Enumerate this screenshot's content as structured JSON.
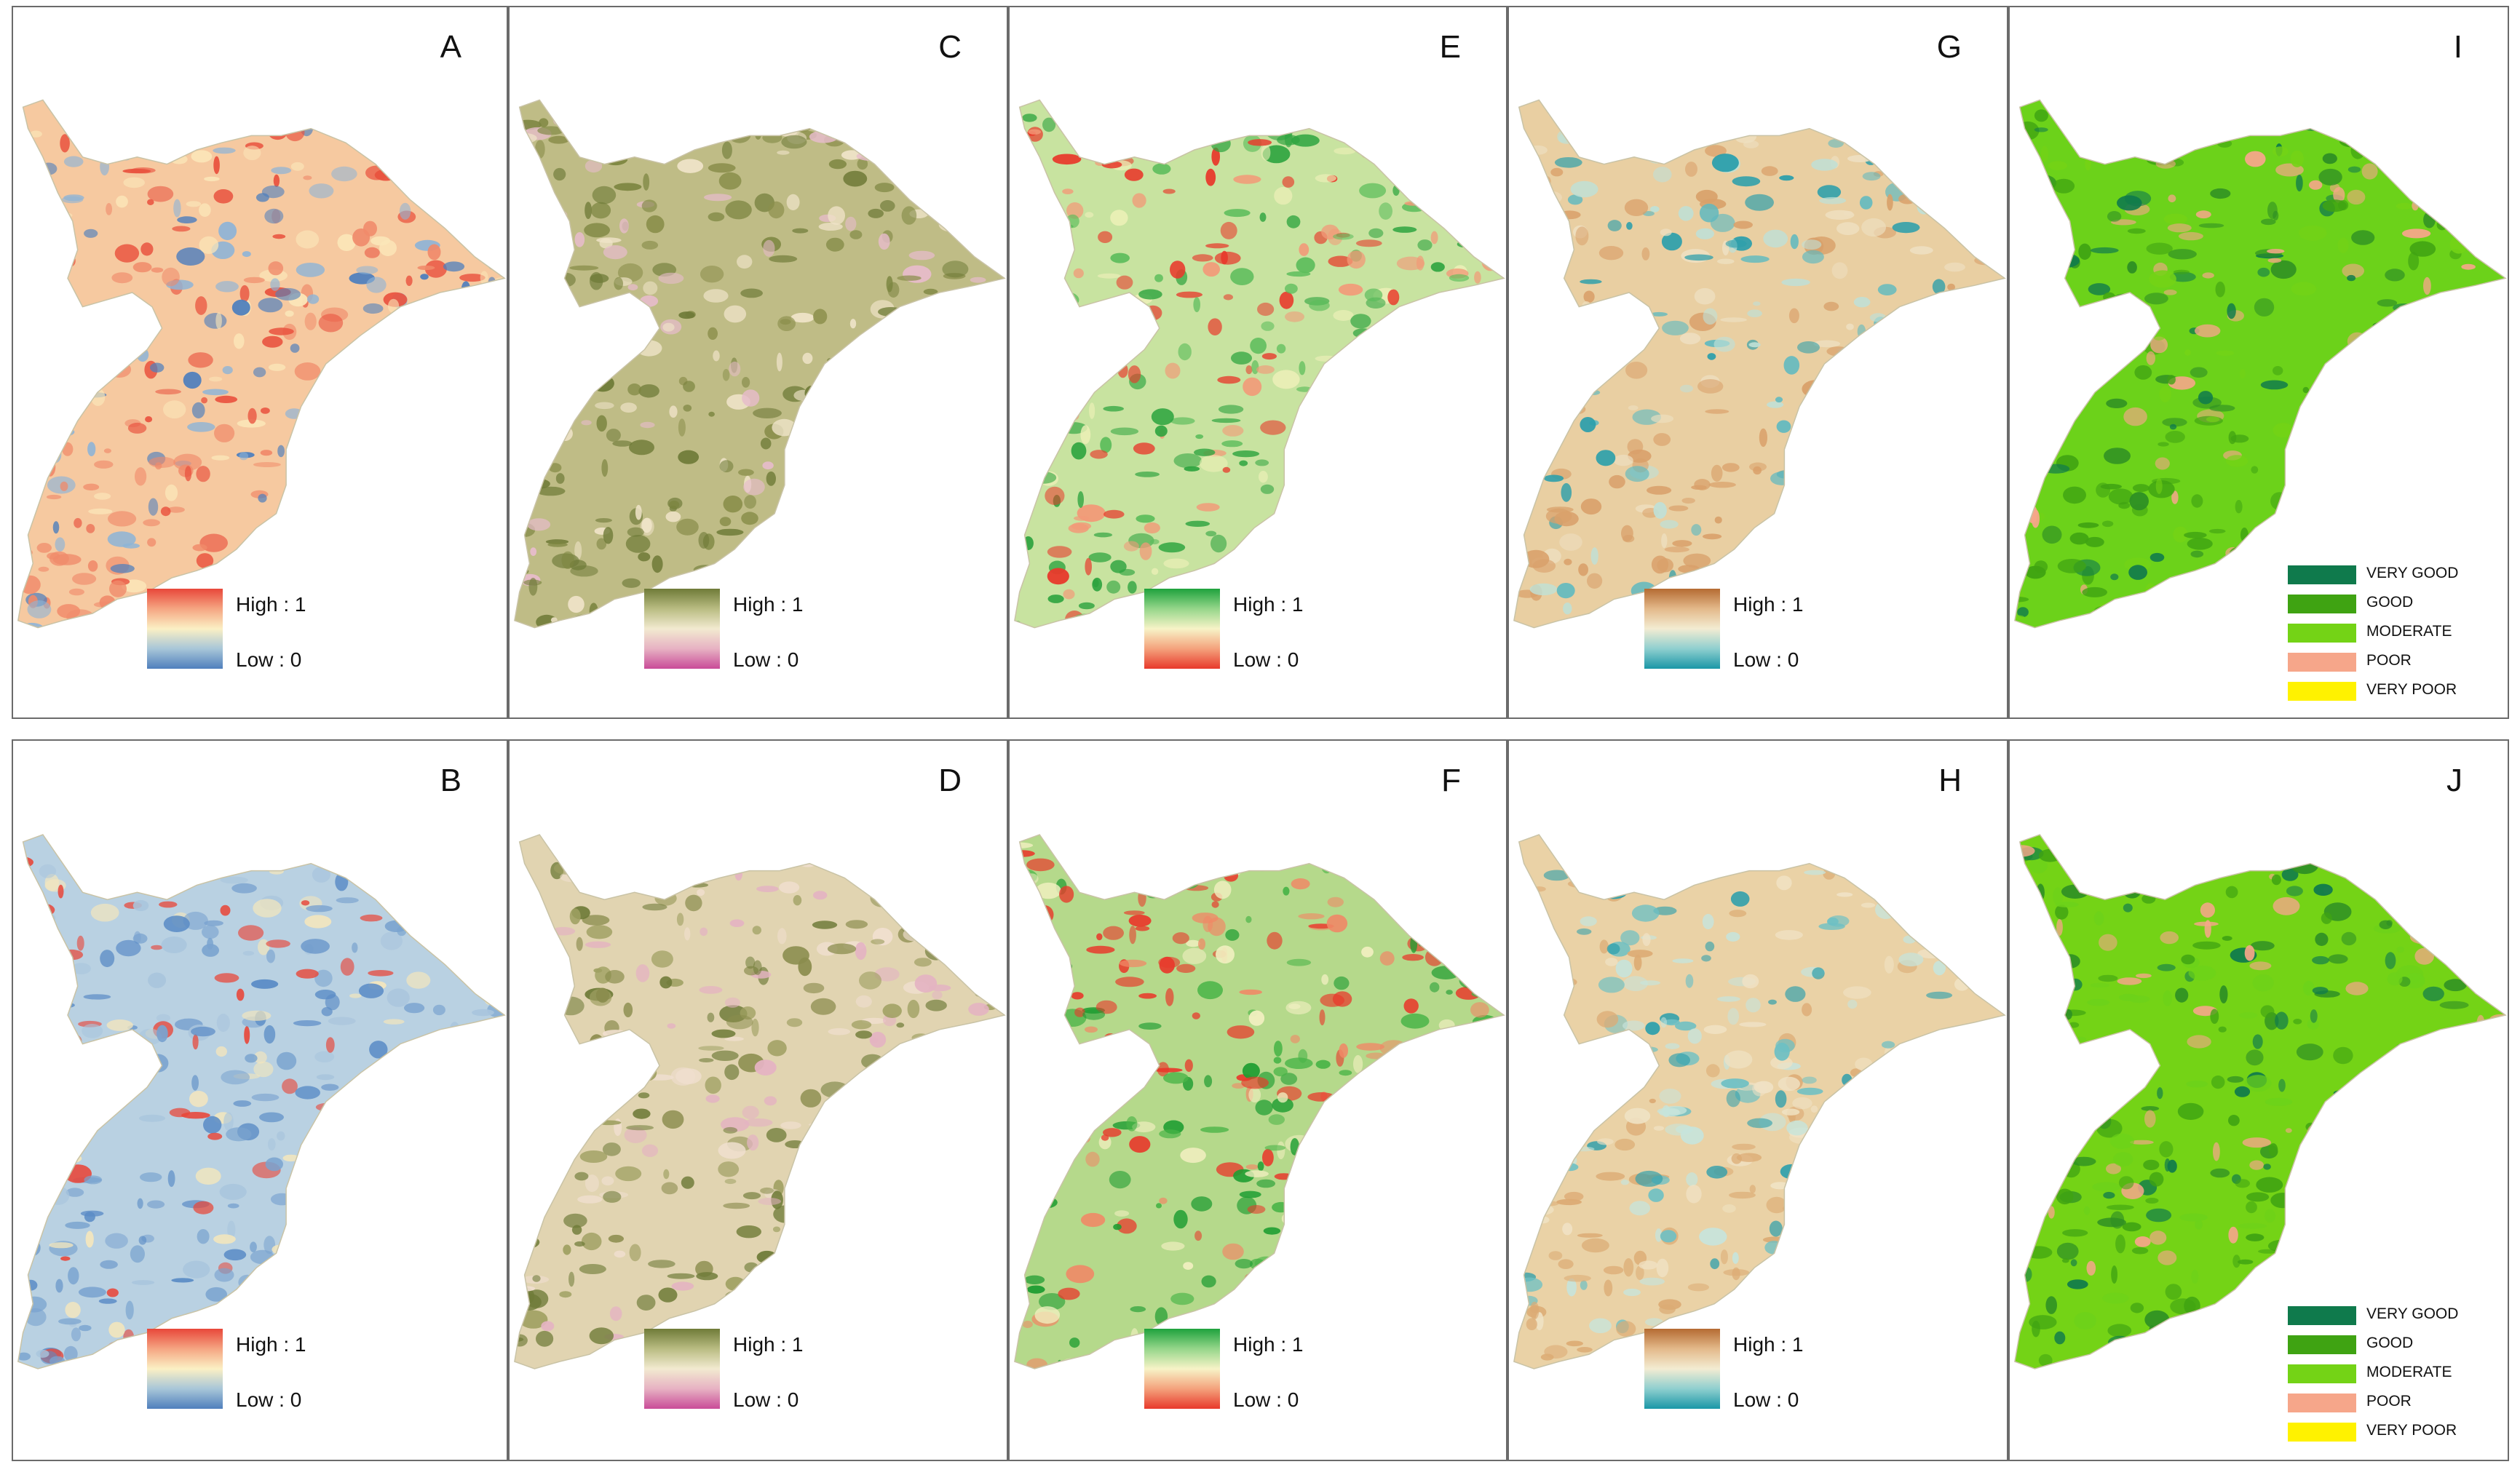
{
  "panels": [
    {
      "id": "A",
      "legend": {
        "type": "gradient",
        "high": "High : 1",
        "low": "Low : 0",
        "colors": [
          "#e8473a",
          "#f5a582",
          "#fbf0c4",
          "#a8c6d8",
          "#4f7fbd"
        ]
      }
    },
    {
      "id": "B",
      "legend": {
        "type": "gradient",
        "high": "High : 1",
        "low": "Low : 0",
        "colors": [
          "#e8473a",
          "#f5a582",
          "#fbf0c4",
          "#a8c6d8",
          "#4f7fbd"
        ]
      }
    },
    {
      "id": "C",
      "legend": {
        "type": "gradient",
        "high": "High : 1",
        "low": "Low : 0",
        "colors": [
          "#6f7b38",
          "#b9bc82",
          "#f2ead0",
          "#e7b2c3",
          "#c94b98"
        ]
      }
    },
    {
      "id": "D",
      "legend": {
        "type": "gradient",
        "high": "High : 1",
        "low": "Low : 0",
        "colors": [
          "#6f7b38",
          "#b9bc82",
          "#f2ead0",
          "#e7b2c3",
          "#c94b98"
        ]
      }
    },
    {
      "id": "E",
      "legend": {
        "type": "gradient",
        "high": "High : 1",
        "low": "Low : 0",
        "colors": [
          "#1ea23d",
          "#95d68a",
          "#f7f3c7",
          "#f4a27c",
          "#e8392b"
        ]
      }
    },
    {
      "id": "F",
      "legend": {
        "type": "gradient",
        "high": "High : 1",
        "low": "Low : 0",
        "colors": [
          "#1ea23d",
          "#95d68a",
          "#f7f3c7",
          "#f4a27c",
          "#e8392b"
        ]
      }
    },
    {
      "id": "G",
      "legend": {
        "type": "gradient",
        "high": "High : 1",
        "low": "Low : 0",
        "colors": [
          "#b56b32",
          "#e3b98a",
          "#f3ecd2",
          "#8fcfcf",
          "#1a97a7"
        ]
      }
    },
    {
      "id": "H",
      "legend": {
        "type": "gradient",
        "high": "High : 1",
        "low": "Low : 0",
        "colors": [
          "#b56b32",
          "#e3b98a",
          "#f3ecd2",
          "#8fcfcf",
          "#1a97a7"
        ]
      }
    },
    {
      "id": "I",
      "legend": {
        "type": "classes",
        "classes": [
          {
            "label": "VERY GOOD",
            "color": "#0f7a4c"
          },
          {
            "label": "GOOD",
            "color": "#3fa312"
          },
          {
            "label": "MODERATE",
            "color": "#74d316"
          },
          {
            "label": "POOR",
            "color": "#f6a68a"
          },
          {
            "label": "VERY POOR",
            "color": "#fff200"
          }
        ]
      }
    },
    {
      "id": "J",
      "legend": {
        "type": "classes",
        "classes": [
          {
            "label": "VERY GOOD",
            "color": "#0f7a4c"
          },
          {
            "label": "GOOD",
            "color": "#3fa312"
          },
          {
            "label": "MODERATE",
            "color": "#74d316"
          },
          {
            "label": "POOR",
            "color": "#f6a68a"
          },
          {
            "label": "VERY POOR",
            "color": "#fff200"
          }
        ]
      }
    }
  ],
  "map_fill": {
    "A": {
      "base": "#f6c9a0",
      "patches": [
        "#e9533f",
        "#f08a6a",
        "#8fb4d6",
        "#4f7fbd",
        "#fbe6b8"
      ]
    },
    "B": {
      "base": "#b9d1e2",
      "patches": [
        "#5b8cc6",
        "#7aa3cf",
        "#f3e6bd",
        "#e8473a",
        "#a9c5dd"
      ]
    },
    "C": {
      "base": "#bfbc86",
      "patches": [
        "#6f7b38",
        "#8b8f4c",
        "#efe3c8",
        "#e7bccb",
        "#7c8540"
      ]
    },
    "D": {
      "base": "#e1d4b1",
      "patches": [
        "#6f7b38",
        "#9fa062",
        "#f0dfcf",
        "#e4b3c2",
        "#8a8c4d"
      ]
    },
    "E": {
      "base": "#c8e3a0",
      "patches": [
        "#2ea43f",
        "#5cbd5b",
        "#f29a78",
        "#e8392b",
        "#eef0b8"
      ]
    },
    "F": {
      "base": "#b5d98b",
      "patches": [
        "#1f9d32",
        "#49b447",
        "#f08866",
        "#e8392b",
        "#f1efc0"
      ]
    },
    "G": {
      "base": "#e9cfa2",
      "patches": [
        "#d9a06a",
        "#bfe0d6",
        "#5fb9c0",
        "#2a9eab",
        "#eedfc0"
      ]
    },
    "H": {
      "base": "#ead2a6",
      "patches": [
        "#dcab74",
        "#c7e4db",
        "#6ec0c4",
        "#2f9fac",
        "#f0e2c4"
      ]
    },
    "I": {
      "base": "#6cd21a",
      "patches": [
        "#3fa312",
        "#2e8f24",
        "#f6a68a",
        "#0f7a4c",
        "#74d316"
      ]
    },
    "J": {
      "base": "#74d316",
      "patches": [
        "#3fa312",
        "#2e8f24",
        "#f6a68a",
        "#0f7a4c",
        "#6cd21a"
      ]
    }
  }
}
